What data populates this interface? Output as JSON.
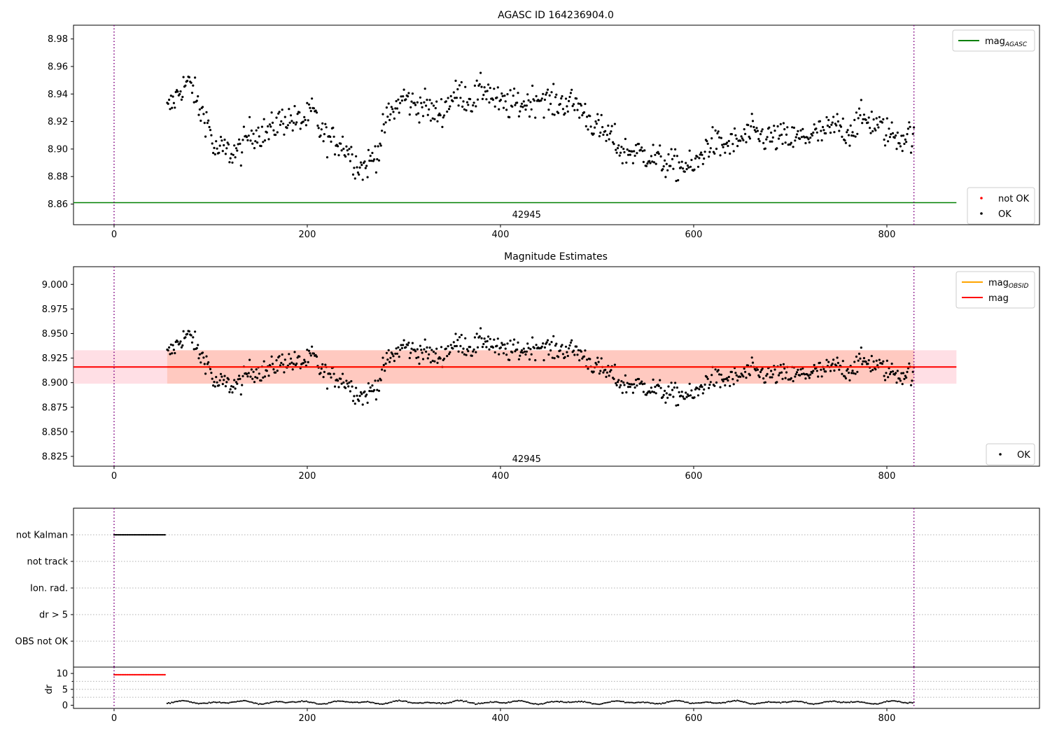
{
  "chart_data": [
    {
      "type": "scatter",
      "title": "AGASC ID 164236904.0",
      "xlim": [
        -42,
        958
      ],
      "ylim": [
        8.845,
        8.99
      ],
      "xticks": [
        0,
        200,
        400,
        600,
        800
      ],
      "yticks": [
        8.86,
        8.88,
        8.9,
        8.92,
        8.94,
        8.96,
        8.98
      ],
      "ytick_labels": [
        "8.86",
        "8.88",
        "8.90",
        "8.92",
        "8.94",
        "8.96",
        "8.98"
      ],
      "xtick_labels": [
        "0",
        "200",
        "400",
        "600",
        "800"
      ],
      "mag_agasc": 8.861,
      "line_x_end": 872,
      "vlines": [
        0,
        828
      ],
      "obsid_label": {
        "text": "42945",
        "x": 414,
        "y": 8.852
      },
      "legend_top": {
        "position": "top-right",
        "entries": [
          {
            "label": "mag",
            "sub": "AGASC",
            "color": "#008000"
          }
        ]
      },
      "legend_bottom": {
        "position": "bottom-right",
        "entries": [
          {
            "label": "not OK",
            "color": "#ff0000"
          },
          {
            "label": "OK",
            "color": "#000000"
          }
        ]
      }
    },
    {
      "type": "scatter",
      "title": "Magnitude Estimates",
      "xlim": [
        -42,
        958
      ],
      "ylim": [
        8.815,
        9.018
      ],
      "xticks": [
        0,
        200,
        400,
        600,
        800
      ],
      "xtick_labels": [
        "0",
        "200",
        "400",
        "600",
        "800"
      ],
      "yticks": [
        8.825,
        8.85,
        8.875,
        8.9,
        8.925,
        8.95,
        8.975,
        9.0
      ],
      "ytick_labels": [
        "8.825",
        "8.850",
        "8.875",
        "8.900",
        "8.925",
        "8.950",
        "8.975",
        "9.000"
      ],
      "mag": 8.916,
      "mag_obsid": 8.916,
      "band": [
        8.899,
        8.933
      ],
      "band_x_end": 872,
      "vlines": [
        0,
        828
      ],
      "obsid_label": {
        "text": "42945",
        "x": 414,
        "y": 8.822
      },
      "legend_top": {
        "position": "top-right",
        "entries": [
          {
            "label": "mag",
            "sub": "OBSID",
            "color": "#ffa500"
          },
          {
            "label": "mag",
            "sub": "",
            "color": "#ff0000"
          }
        ]
      },
      "legend_bottom": {
        "position": "bottom-right",
        "entries": [
          {
            "label": "OK",
            "color": "#000000"
          }
        ]
      }
    },
    {
      "type": "scatter",
      "xlim": [
        -42,
        958
      ],
      "flag_labels": [
        "not Kalman",
        "not track",
        "Ion. rad.",
        "dr > 5",
        "OBS not OK"
      ],
      "not_kalman_x": [
        0,
        54
      ],
      "dr_ylim": [
        -1,
        12
      ],
      "dr_yticks": [
        0,
        5,
        10
      ],
      "dr_ytick_labels": [
        "0",
        "5",
        "10"
      ],
      "dr_ylabel": "dr",
      "dr_red_x": [
        0,
        54
      ],
      "dr_red_y": 9.6,
      "xticks": [
        0,
        200,
        400,
        600,
        800
      ],
      "xtick_labels": [
        "0",
        "200",
        "400",
        "600",
        "800"
      ],
      "vlines": [
        0,
        828
      ]
    }
  ],
  "mag_series": {
    "x_start": 55,
    "x_end": 828,
    "count": 780,
    "anchors": [
      [
        55,
        8.928
      ],
      [
        62,
        8.935
      ],
      [
        70,
        8.945
      ],
      [
        76,
        8.948
      ],
      [
        82,
        8.944
      ],
      [
        88,
        8.928
      ],
      [
        94,
        8.925
      ],
      [
        99,
        8.915
      ],
      [
        104,
        8.898
      ],
      [
        112,
        8.9
      ],
      [
        122,
        8.897
      ],
      [
        132,
        8.9
      ],
      [
        140,
        8.912
      ],
      [
        150,
        8.912
      ],
      [
        160,
        8.912
      ],
      [
        170,
        8.92
      ],
      [
        180,
        8.922
      ],
      [
        190,
        8.92
      ],
      [
        200,
        8.922
      ],
      [
        206,
        8.928
      ],
      [
        214,
        8.912
      ],
      [
        224,
        8.906
      ],
      [
        234,
        8.905
      ],
      [
        242,
        8.9
      ],
      [
        250,
        8.89
      ],
      [
        258,
        8.886
      ],
      [
        266,
        8.892
      ],
      [
        274,
        8.9
      ],
      [
        282,
        8.922
      ],
      [
        292,
        8.93
      ],
      [
        300,
        8.938
      ],
      [
        310,
        8.932
      ],
      [
        322,
        8.932
      ],
      [
        332,
        8.925
      ],
      [
        340,
        8.928
      ],
      [
        350,
        8.938
      ],
      [
        360,
        8.94
      ],
      [
        370,
        8.935
      ],
      [
        384,
        8.945
      ],
      [
        398,
        8.933
      ],
      [
        410,
        8.932
      ],
      [
        425,
        8.933
      ],
      [
        440,
        8.938
      ],
      [
        455,
        8.933
      ],
      [
        470,
        8.934
      ],
      [
        480,
        8.932
      ],
      [
        488,
        8.925
      ],
      [
        496,
        8.918
      ],
      [
        506,
        8.912
      ],
      [
        516,
        8.908
      ],
      [
        526,
        8.898
      ],
      [
        540,
        8.898
      ],
      [
        552,
        8.896
      ],
      [
        564,
        8.892
      ],
      [
        576,
        8.888
      ],
      [
        590,
        8.888
      ],
      [
        600,
        8.886
      ],
      [
        608,
        8.895
      ],
      [
        616,
        8.905
      ],
      [
        630,
        8.902
      ],
      [
        645,
        8.905
      ],
      [
        660,
        8.912
      ],
      [
        675,
        8.908
      ],
      [
        690,
        8.908
      ],
      [
        705,
        8.907
      ],
      [
        720,
        8.91
      ],
      [
        735,
        8.912
      ],
      [
        748,
        8.917
      ],
      [
        760,
        8.912
      ],
      [
        772,
        8.922
      ],
      [
        785,
        8.92
      ],
      [
        796,
        8.914
      ],
      [
        806,
        8.91
      ],
      [
        816,
        8.908
      ],
      [
        824,
        8.912
      ],
      [
        828,
        8.905
      ]
    ]
  },
  "dr_series": {
    "x_start": 55,
    "x_end": 828,
    "count": 500,
    "mean": 0.9,
    "amplitude": 0.55
  }
}
